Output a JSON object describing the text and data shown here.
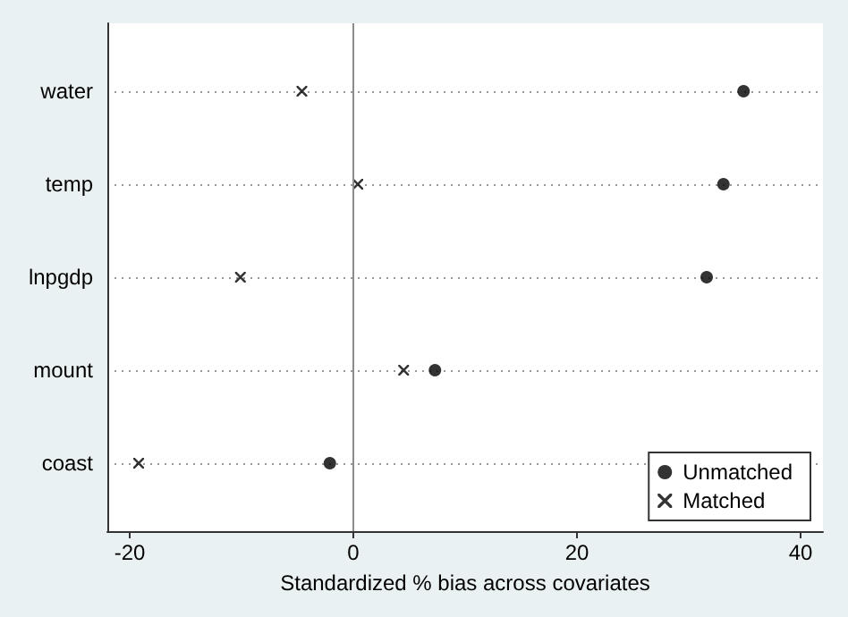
{
  "chart_data": {
    "type": "scatter",
    "orientation": "horizontal",
    "xlabel": "Standardized % bias across covariates",
    "categories": [
      "water",
      "temp",
      "lnpgdp",
      "mount",
      "coast"
    ],
    "series": [
      {
        "name": "Unmatched",
        "color": "#000000",
        "marker": "circle",
        "values": [
          34.9,
          33.1,
          31.6,
          7.3,
          -2.1
        ]
      },
      {
        "name": "Matched",
        "color": "#000000",
        "marker": "cross",
        "values": [
          -4.6,
          0.4,
          -10.1,
          4.5,
          -19.2
        ]
      }
    ],
    "xlim": [
      -22,
      42
    ],
    "xticks": [
      -20,
      0,
      20,
      40
    ],
    "grid": "y",
    "legend": "bottom right",
    "ref_lines": [
      {
        "axis": "x",
        "value": 0,
        "color": "#8c8c8c"
      }
    ]
  }
}
